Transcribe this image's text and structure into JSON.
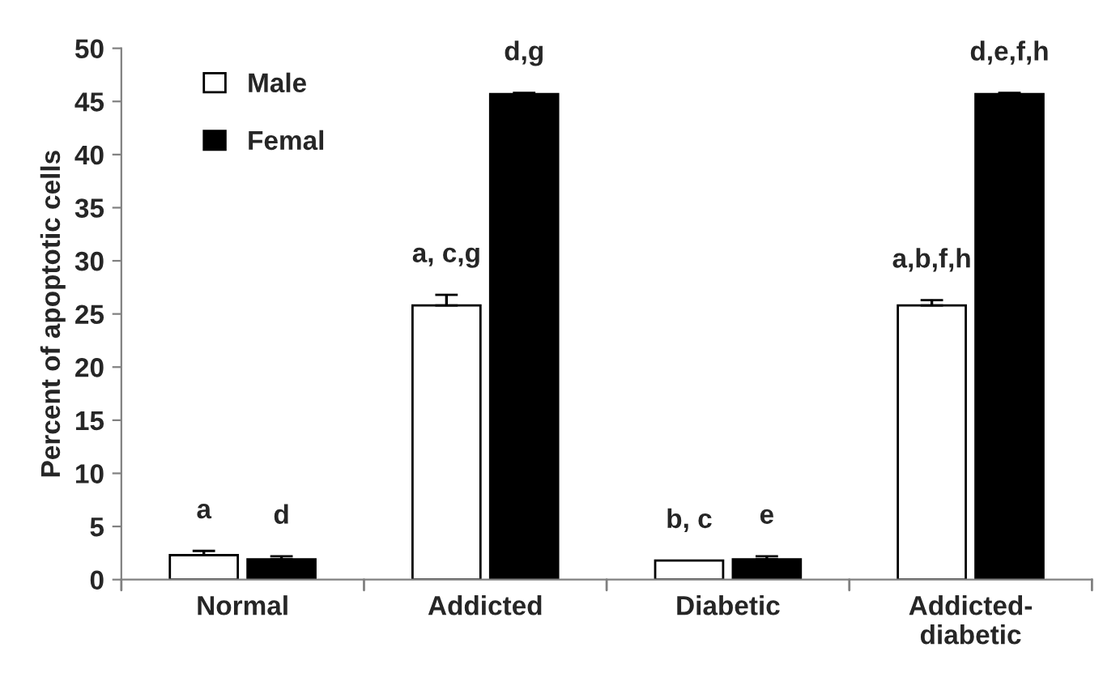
{
  "chart_data": {
    "type": "bar",
    "ylabel": "Percent of apoptotic cells",
    "categories": [
      "Normal",
      "Addicted",
      "Diabetic",
      "Addicted-\ndiabetic"
    ],
    "series": [
      {
        "name": "Male",
        "color": "#ffffff",
        "values": [
          2.3,
          25.8,
          1.8,
          25.8
        ],
        "errors": [
          0.4,
          1.0,
          null,
          0.5
        ],
        "value_labels": [
          "a",
          "a, c,g",
          "b, c",
          "a,b,f,h"
        ]
      },
      {
        "name": "Femal",
        "color": "#000000",
        "values": [
          1.9,
          45.7,
          1.9,
          45.7
        ],
        "errors": [
          0.3,
          0.1,
          0.3,
          0.1
        ],
        "value_labels": [
          "d",
          "d,g",
          "e",
          "d,e,f,h"
        ]
      }
    ],
    "ylim": [
      0,
      50
    ],
    "yticks": [
      0,
      5,
      10,
      15,
      20,
      25,
      30,
      35,
      40,
      45,
      50
    ],
    "grid": false,
    "legend": "top left"
  }
}
